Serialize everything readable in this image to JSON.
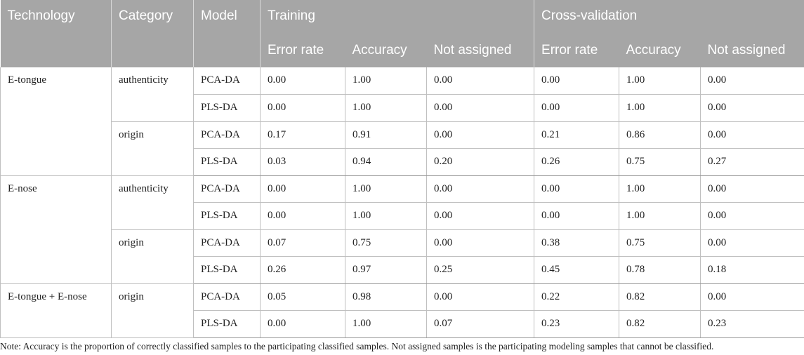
{
  "header": {
    "technology": "Technology",
    "category": "Category",
    "model": "Model",
    "training": "Training",
    "cross_validation": "Cross-validation",
    "sub": {
      "error_rate": "Error rate",
      "accuracy": "Accuracy",
      "not_assigned": "Not assigned"
    }
  },
  "groups": [
    {
      "technology": "E-tongue",
      "categories": [
        {
          "category": "authenticity",
          "rows": [
            {
              "model": "PCA-DA",
              "train": [
                "0.00",
                "1.00",
                "0.00"
              ],
              "cv": [
                "0.00",
                "1.00",
                "0.00"
              ]
            },
            {
              "model": "PLS-DA",
              "train": [
                "0.00",
                "1.00",
                "0.00"
              ],
              "cv": [
                "0.00",
                "1.00",
                "0.00"
              ]
            }
          ]
        },
        {
          "category": "origin",
          "rows": [
            {
              "model": "PCA-DA",
              "train": [
                "0.17",
                "0.91",
                "0.00"
              ],
              "cv": [
                "0.21",
                "0.86",
                "0.00"
              ]
            },
            {
              "model": "PLS-DA",
              "train": [
                "0.03",
                "0.94",
                "0.20"
              ],
              "cv": [
                "0.26",
                "0.75",
                "0.27"
              ]
            }
          ]
        }
      ]
    },
    {
      "technology": "E-nose",
      "categories": [
        {
          "category": "authenticity",
          "rows": [
            {
              "model": "PCA-DA",
              "train": [
                "0.00",
                "1.00",
                "0.00"
              ],
              "cv": [
                "0.00",
                "1.00",
                "0.00"
              ]
            },
            {
              "model": "PLS-DA",
              "train": [
                "0.00",
                "1.00",
                "0.00"
              ],
              "cv": [
                "0.00",
                "1.00",
                "0.00"
              ]
            }
          ]
        },
        {
          "category": "origin",
          "rows": [
            {
              "model": "PCA-DA",
              "train": [
                "0.07",
                "0.75",
                "0.00"
              ],
              "cv": [
                "0.38",
                "0.75",
                "0.00"
              ]
            },
            {
              "model": "PLS-DA",
              "train": [
                "0.26",
                "0.97",
                "0.25"
              ],
              "cv": [
                "0.45",
                "0.78",
                "0.18"
              ]
            }
          ]
        }
      ]
    },
    {
      "technology": "E-tongue + E-nose",
      "categories": [
        {
          "category": "origin",
          "rows": [
            {
              "model": "PCA-DA",
              "train": [
                "0.05",
                "0.98",
                "0.00"
              ],
              "cv": [
                "0.22",
                "0.82",
                "0.00"
              ]
            },
            {
              "model": "PLS-DA",
              "train": [
                "0.00",
                "1.00",
                "0.07"
              ],
              "cv": [
                "0.23",
                "0.82",
                "0.23"
              ]
            }
          ]
        }
      ]
    }
  ],
  "note": "Note: Accuracy is the proportion of correctly classified samples to the participating classified samples. Not assigned samples is the participating modeling samples that cannot be classified."
}
